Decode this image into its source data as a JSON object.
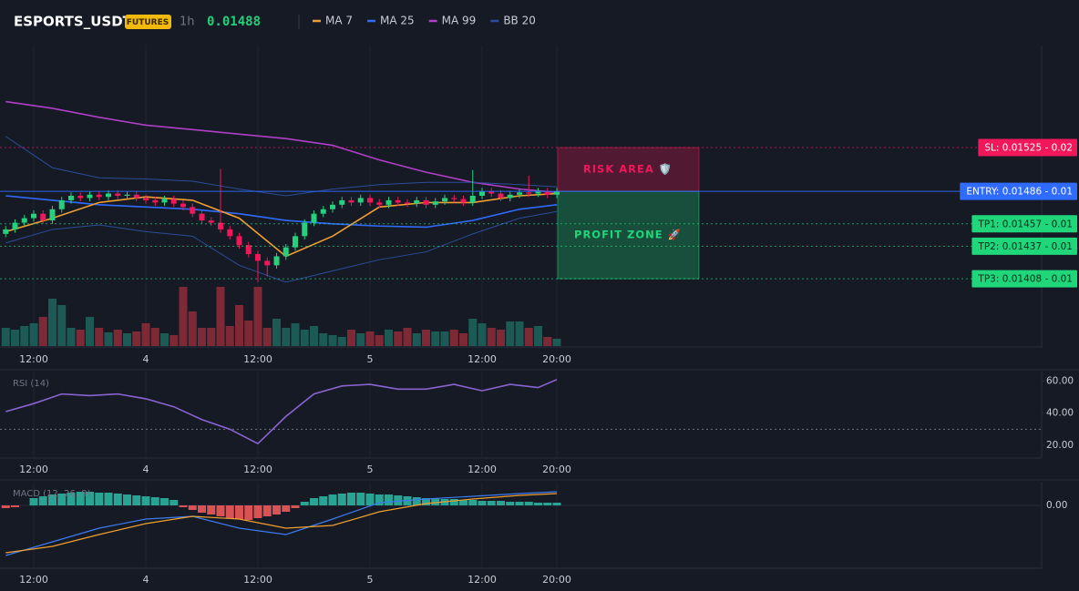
{
  "header": {
    "symbol": "ESPORTS_USDT",
    "badge": "FUTURES",
    "interval": "1h",
    "price": "0.01488",
    "legend": [
      {
        "name": "MA 7",
        "color": "#f0a030"
      },
      {
        "name": "MA 25",
        "color": "#2f6bff"
      },
      {
        "name": "MA 99",
        "color": "#b03fc8"
      },
      {
        "name": "BB 20",
        "color": "#2b4d9a"
      }
    ]
  },
  "chart_data": [
    {
      "type": "candlestick",
      "categories": [
        null,
        null,
        null,
        "12:00",
        null,
        null,
        null,
        null,
        null,
        null,
        null,
        null,
        null,
        null,
        null,
        "4",
        null,
        null,
        null,
        null,
        null,
        null,
        null,
        null,
        null,
        null,
        null,
        "12:00",
        null,
        null,
        null,
        null,
        null,
        null,
        null,
        null,
        null,
        null,
        null,
        "5",
        null,
        null,
        null,
        null,
        null,
        null,
        null,
        null,
        null,
        null,
        null,
        "12:00",
        null,
        null,
        null,
        null,
        null,
        null,
        null,
        "20:00"
      ],
      "open": [
        0.01448,
        0.01452,
        0.01458,
        0.01462,
        0.01466,
        0.0146,
        0.0147,
        0.01478,
        0.01482,
        0.0148,
        0.01483,
        0.01481,
        0.01484,
        0.01482,
        0.01483,
        0.0148,
        0.01478,
        0.01476,
        0.01479,
        0.01475,
        0.01472,
        0.01466,
        0.0146,
        0.01458,
        0.01452,
        0.01446,
        0.01438,
        0.0143,
        0.01424,
        0.0142,
        0.01428,
        0.01436,
        0.01446,
        0.01458,
        0.01466,
        0.0147,
        0.01474,
        0.01478,
        0.01476,
        0.0148,
        0.01476,
        0.01474,
        0.01478,
        0.01476,
        0.01475,
        0.01478,
        0.01474,
        0.01477,
        0.0148,
        0.01479,
        0.01476,
        0.01482,
        0.01486,
        0.01484,
        0.0148,
        0.01483,
        0.01485,
        0.01484,
        0.01486,
        0.01483
      ],
      "high": [
        0.01455,
        0.01461,
        0.01465,
        0.01469,
        0.01469,
        0.01473,
        0.01481,
        0.01485,
        0.01485,
        0.01486,
        0.01486,
        0.01487,
        0.01487,
        0.01486,
        0.01486,
        0.01483,
        0.01481,
        0.01482,
        0.01482,
        0.01478,
        0.01475,
        0.01469,
        0.01463,
        0.01506,
        0.01455,
        0.01449,
        0.01441,
        0.01433,
        0.01427,
        0.01431,
        0.01439,
        0.01449,
        0.01461,
        0.01469,
        0.01473,
        0.01477,
        0.01481,
        0.01481,
        0.01483,
        0.01483,
        0.01479,
        0.01481,
        0.01481,
        0.01479,
        0.01481,
        0.01481,
        0.0148,
        0.01483,
        0.01483,
        0.01482,
        0.01505,
        0.01489,
        0.01489,
        0.01487,
        0.01486,
        0.01488,
        0.015,
        0.01489,
        0.01489,
        0.01489
      ],
      "low": [
        0.01445,
        0.01449,
        0.01455,
        0.01459,
        0.01457,
        0.01457,
        0.01467,
        0.01475,
        0.01477,
        0.01477,
        0.01478,
        0.01478,
        0.01479,
        0.01479,
        0.01477,
        0.01475,
        0.01473,
        0.01473,
        0.01472,
        0.01469,
        0.01463,
        0.01457,
        0.01455,
        0.01449,
        0.01443,
        0.01435,
        0.01427,
        0.01405,
        0.0141,
        0.01417,
        0.01425,
        0.01433,
        0.01443,
        0.01455,
        0.01463,
        0.01467,
        0.01471,
        0.01473,
        0.01473,
        0.01473,
        0.01471,
        0.01471,
        0.01473,
        0.01472,
        0.01472,
        0.01471,
        0.01471,
        0.01474,
        0.01476,
        0.01473,
        0.01473,
        0.01479,
        0.01481,
        0.01477,
        0.01477,
        0.0148,
        0.01481,
        0.01481,
        0.0148,
        0.0148
      ],
      "close": [
        0.01452,
        0.01458,
        0.01462,
        0.01466,
        0.0146,
        0.0147,
        0.01478,
        0.01482,
        0.0148,
        0.01483,
        0.01481,
        0.01484,
        0.01482,
        0.01483,
        0.0148,
        0.01478,
        0.01476,
        0.01479,
        0.01475,
        0.01472,
        0.01466,
        0.0146,
        0.01458,
        0.01452,
        0.01446,
        0.01438,
        0.0143,
        0.01424,
        0.0142,
        0.01428,
        0.01436,
        0.01446,
        0.01458,
        0.01466,
        0.0147,
        0.01474,
        0.01478,
        0.01476,
        0.0148,
        0.01476,
        0.01474,
        0.01478,
        0.01476,
        0.01475,
        0.01478,
        0.01474,
        0.01477,
        0.0148,
        0.01479,
        0.01476,
        0.01482,
        0.01486,
        0.01484,
        0.0148,
        0.01483,
        0.01485,
        0.01484,
        0.01486,
        0.01483,
        0.01486
      ],
      "up_color": "#26d07c",
      "down_color": "#f0185a",
      "volume": [
        20,
        18,
        22,
        25,
        32,
        52,
        45,
        20,
        18,
        32,
        20,
        15,
        18,
        14,
        16,
        25,
        20,
        14,
        12,
        65,
        38,
        20,
        20,
        65,
        22,
        45,
        28,
        65,
        20,
        30,
        20,
        25,
        18,
        22,
        14,
        12,
        10,
        18,
        14,
        16,
        12,
        18,
        16,
        20,
        14,
        18,
        16,
        16,
        18,
        14,
        30,
        25,
        20,
        18,
        27,
        27,
        20,
        22,
        10,
        8
      ],
      "vlim": [
        0,
        100
      ],
      "ylim": [
        0.01348,
        0.01616
      ],
      "series": [
        {
          "name": "MA 99",
          "color": "#b03fc8",
          "x": [
            0,
            5,
            10,
            15,
            20,
            25,
            30,
            35,
            40,
            45,
            50,
            55,
            59
          ],
          "values": [
            0.01566,
            0.0156,
            0.01552,
            0.01545,
            0.01541,
            0.01537,
            0.01533,
            0.01527,
            0.01514,
            0.01503,
            0.01494,
            0.01488,
            0.01485
          ]
        },
        {
          "name": "BB 20",
          "color": "#2b4d9a",
          "x": [
            0,
            5,
            10,
            15,
            20,
            25,
            30,
            35,
            40,
            45,
            50,
            55,
            59
          ],
          "values": [
            0.01535,
            0.01507,
            0.01498,
            0.01497,
            0.01495,
            0.01488,
            0.01482,
            0.01488,
            0.01492,
            0.01494,
            0.01494,
            0.01492,
            0.0149
          ]
        },
        {
          "name": "BB 20",
          "color": "#2b4d9a",
          "x": [
            0,
            5,
            10,
            15,
            20,
            25,
            30,
            35,
            40,
            45,
            50,
            55,
            59
          ],
          "values": [
            0.0144,
            0.01452,
            0.01456,
            0.0145,
            0.01446,
            0.0142,
            0.01405,
            0.01415,
            0.01425,
            0.01432,
            0.01448,
            0.01462,
            0.01468
          ]
        },
        {
          "name": "MA 25",
          "color": "#2f6bff",
          "x": [
            0,
            5,
            10,
            15,
            20,
            25,
            30,
            35,
            40,
            45,
            50,
            55,
            59
          ],
          "values": [
            0.01482,
            0.01478,
            0.01474,
            0.01472,
            0.0147,
            0.01466,
            0.0146,
            0.01457,
            0.01455,
            0.01454,
            0.0146,
            0.0147,
            0.01474
          ]
        },
        {
          "name": "MA 7",
          "color": "#f0a030",
          "x": [
            0,
            5,
            10,
            15,
            20,
            25,
            30,
            35,
            40,
            45,
            50,
            55,
            59
          ],
          "values": [
            0.0145,
            0.01462,
            0.01476,
            0.01481,
            0.01478,
            0.01462,
            0.01428,
            0.01446,
            0.01472,
            0.01476,
            0.01476,
            0.01482,
            0.01484
          ]
        }
      ],
      "levels": [
        {
          "label": "SL: 0.01525 - 0.02",
          "value": 0.01525,
          "color": "#f0185a"
        },
        {
          "label": "ENTRY: 0.01486 - 0.01",
          "value": 0.01486,
          "color": "#2f6bff"
        },
        {
          "label": "TP1: 0.01457 - 0.01",
          "value": 0.01457,
          "color": "#1fd67a"
        },
        {
          "label": "TP2: 0.01437 - 0.01",
          "value": 0.01437,
          "color": "#1fd67a"
        },
        {
          "label": "TP3: 0.01408 - 0.01",
          "value": 0.01408,
          "color": "#1fd67a"
        }
      ],
      "zones": [
        {
          "label": "RISK AREA 🛡️",
          "color": "#f0185a"
        },
        {
          "label": "PROFIT ZONE 🚀",
          "color": "#1fd67a"
        }
      ]
    },
    {
      "type": "line",
      "title": "RSI (14)",
      "color": "#8a63d2",
      "x": [
        0,
        3,
        6,
        9,
        12,
        15,
        18,
        21,
        24,
        27,
        30,
        33,
        36,
        39,
        42,
        45,
        48,
        51,
        54,
        57,
        59
      ],
      "values": [
        41,
        46,
        52,
        51,
        52,
        49,
        44,
        36,
        30,
        21,
        38,
        52,
        57,
        58,
        55,
        55,
        58,
        54,
        58,
        56,
        61
      ],
      "ylim": [
        12,
        66
      ],
      "yticks": [
        {
          "value": 20,
          "label": "20.00"
        },
        {
          "value": 40,
          "label": "40.00"
        },
        {
          "value": 60,
          "label": "60.00"
        }
      ],
      "level_line": 30
    },
    {
      "type": "macd",
      "title": "MACD (12, 26, 9)",
      "histogram": [
        -3e-06,
        -2e-06,
        0,
        8e-06,
        1e-05,
        1.2e-05,
        1.3e-05,
        1.4e-05,
        1.5e-05,
        1.5e-05,
        1.4e-05,
        1.4e-05,
        1.3e-05,
        1.2e-05,
        1.1e-05,
        1e-05,
        9e-06,
        8e-06,
        6e-06,
        -2e-06,
        -5e-06,
        -8e-06,
        -1e-05,
        -1.2e-05,
        -1.4e-05,
        -1.5e-05,
        -1.6e-05,
        -1.4e-05,
        -1.2e-05,
        -1e-05,
        -7e-06,
        -3e-06,
        4e-06,
        8e-06,
        1e-05,
        1.2e-05,
        1.3e-05,
        1.4e-05,
        1.4e-05,
        1.3e-05,
        1.2e-05,
        1.2e-05,
        1.1e-05,
        1e-05,
        9e-06,
        8e-06,
        8e-06,
        7e-06,
        7e-06,
        6e-06,
        6e-06,
        5e-06,
        5e-06,
        5e-06,
        4e-06,
        4e-06,
        4e-06,
        3e-06,
        3e-06,
        3e-06
      ],
      "up_color": "#2bb3a0",
      "down_color": "#ef5a5a",
      "series": [
        {
          "name": "MACD",
          "color": "#3c7cf0",
          "x": [
            0,
            5,
            10,
            15,
            20,
            25,
            30,
            35,
            40,
            45,
            50,
            55,
            59
          ],
          "values": [
            -5.5e-05,
            -4e-05,
            -2.5e-05,
            -1.5e-05,
            -1.2e-05,
            -2.5e-05,
            -3.2e-05,
            -1.5e-05,
            3e-06,
            7e-06,
            1e-05,
            1.3e-05,
            1.5e-05
          ]
        },
        {
          "name": "Signal",
          "color": "#f0a030",
          "x": [
            0,
            5,
            10,
            15,
            20,
            25,
            30,
            35,
            40,
            45,
            50,
            55,
            59
          ],
          "values": [
            -5.2e-05,
            -4.5e-05,
            -3.2e-05,
            -2e-05,
            -1.2e-05,
            -1.5e-05,
            -2.5e-05,
            -2.2e-05,
            -7e-06,
            2e-06,
            7e-06,
            1.1e-05,
            1.3e-05
          ]
        }
      ],
      "ylim": [
        -7e-05,
        2.5e-05
      ],
      "yticks": [
        {
          "value": 0,
          "label": "0.00"
        }
      ]
    }
  ]
}
